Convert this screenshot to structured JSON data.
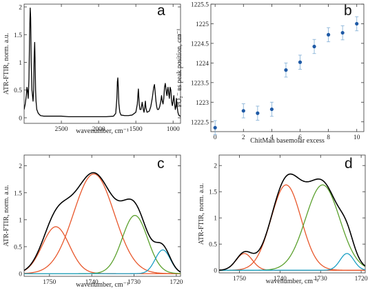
{
  "chart_data": [
    {
      "panel": "a",
      "type": "line",
      "xlabel": "wavenumber, cm⁻¹",
      "ylabel": "ATR-FTIR, norm. a.u.",
      "xlim": [
        3000,
        900
      ],
      "ylim": [
        -0.1,
        2.05
      ],
      "xticks": [
        2500,
        2000,
        1500,
        1000
      ],
      "yticks": [
        0,
        0.5,
        1,
        1.5,
        2
      ],
      "color": "#000000",
      "x": [
        3000,
        2985,
        2970,
        2962,
        2955,
        2945,
        2935,
        2925,
        2918,
        2912,
        2905,
        2895,
        2880,
        2872,
        2865,
        2858,
        2852,
        2846,
        2840,
        2830,
        2810,
        2780,
        2740,
        2700,
        2600,
        2500,
        2400,
        2300,
        2200,
        2100,
        2000,
        1900,
        1800,
        1770,
        1755,
        1748,
        1742,
        1736,
        1728,
        1715,
        1700,
        1650,
        1600,
        1550,
        1500,
        1480,
        1470,
        1466,
        1462,
        1455,
        1445,
        1430,
        1415,
        1400,
        1390,
        1380,
        1372,
        1365,
        1350,
        1320,
        1300,
        1280,
        1260,
        1250,
        1240,
        1230,
        1220,
        1210,
        1195,
        1180,
        1165,
        1155,
        1145,
        1135,
        1125,
        1115,
        1105,
        1098,
        1090,
        1082,
        1075,
        1068,
        1060,
        1050,
        1040,
        1030,
        1020,
        1010,
        1000,
        990,
        980,
        970,
        962,
        955,
        945,
        935,
        925,
        915,
        905,
        900
      ],
      "y": [
        0.15,
        0.25,
        0.4,
        0.55,
        0.5,
        0.35,
        0.7,
        1.6,
        1.98,
        1.8,
        1.0,
        0.5,
        0.3,
        0.5,
        1.1,
        1.36,
        1.0,
        0.5,
        0.3,
        0.15,
        0.08,
        0.04,
        0.03,
        0.03,
        0.03,
        0.03,
        0.02,
        0.02,
        0.02,
        0.02,
        0.02,
        0.02,
        0.03,
        0.08,
        0.35,
        0.65,
        0.72,
        0.55,
        0.25,
        0.1,
        0.05,
        0.04,
        0.04,
        0.05,
        0.1,
        0.25,
        0.45,
        0.52,
        0.42,
        0.25,
        0.15,
        0.15,
        0.28,
        0.15,
        0.1,
        0.2,
        0.3,
        0.18,
        0.1,
        0.12,
        0.2,
        0.35,
        0.55,
        0.6,
        0.45,
        0.3,
        0.2,
        0.15,
        0.15,
        0.2,
        0.3,
        0.4,
        0.3,
        0.25,
        0.35,
        0.55,
        0.62,
        0.55,
        0.45,
        0.4,
        0.5,
        0.55,
        0.45,
        0.35,
        0.55,
        0.5,
        0.3,
        0.22,
        0.3,
        0.4,
        0.25,
        0.15,
        0.2,
        0.35,
        0.2,
        0.1,
        0.05,
        0.04,
        0.03,
        0.03
      ]
    },
    {
      "panel": "b",
      "type": "scatter",
      "xlabel": "ChitMan basemolar excess",
      "ylabel": "PO₂⁻ as peak position, cm⁻¹",
      "xlim": [
        -0.3,
        10.5
      ],
      "ylim": [
        1222.25,
        1225.5
      ],
      "xticks": [
        0,
        2,
        4,
        6,
        8,
        10
      ],
      "yticks": [
        1222.5,
        1223,
        1223.5,
        1224,
        1224.5,
        1225,
        1225.5
      ],
      "color": "#1f5aa6",
      "x": [
        0,
        2,
        3,
        4,
        5,
        6,
        7,
        8,
        9,
        10
      ],
      "y": [
        1222.35,
        1222.78,
        1222.72,
        1222.82,
        1223.82,
        1224.02,
        1224.42,
        1224.72,
        1224.77,
        1225.0
      ],
      "yerr": [
        0.18,
        0.18,
        0.18,
        0.18,
        0.18,
        0.18,
        0.18,
        0.18,
        0.18,
        0.18
      ]
    },
    {
      "panel": "c",
      "type": "line",
      "xlabel": "wavenumber, cm⁻¹",
      "ylabel": "ATR-FTIR, norm. a.u.",
      "xlim": [
        1756,
        1719
      ],
      "ylim": [
        -0.05,
        2.2
      ],
      "xticks": [
        1750,
        1740,
        1730,
        1720
      ],
      "yticks": [
        0,
        0.5,
        1,
        1.5,
        2
      ],
      "series": [
        {
          "color": "#e8562a",
          "components": [
            {
              "center": 1748.5,
              "amp": 0.87,
              "sigma": 3.2
            }
          ]
        },
        {
          "color": "#e8562a",
          "components": [
            {
              "center": 1739.5,
              "amp": 1.85,
              "sigma": 4.8
            }
          ]
        },
        {
          "color": "#5aa02c",
          "components": [
            {
              "center": 1729.8,
              "amp": 1.08,
              "sigma": 3.0
            }
          ]
        },
        {
          "color": "#1a9fc4",
          "components": [
            {
              "center": 1723.2,
              "amp": 0.44,
              "sigma": 1.8
            }
          ]
        },
        {
          "color": "#000000",
          "components": [
            {
              "center": 1748.5,
              "amp": 0.87,
              "sigma": 3.2
            },
            {
              "center": 1739.5,
              "amp": 1.85,
              "sigma": 4.8
            },
            {
              "center": 1729.8,
              "amp": 1.08,
              "sigma": 3.0
            },
            {
              "center": 1723.2,
              "amp": 0.44,
              "sigma": 1.8
            }
          ]
        }
      ]
    },
    {
      "panel": "d",
      "type": "line",
      "xlabel": "wavenumber, cm⁻¹",
      "ylabel": "ATR-FTIR, norm. a.u.",
      "xlim": [
        1755,
        1719
      ],
      "ylim": [
        -0.05,
        2.2
      ],
      "xticks": [
        1750,
        1740,
        1730,
        1720
      ],
      "yticks": [
        0,
        0.5,
        1,
        1.5,
        2
      ],
      "series": [
        {
          "color": "#e8562a",
          "components": [
            {
              "center": 1748.8,
              "amp": 0.32,
              "sigma": 2.0
            }
          ]
        },
        {
          "color": "#e8562a",
          "components": [
            {
              "center": 1738.5,
              "amp": 1.63,
              "sigma": 3.7
            }
          ]
        },
        {
          "color": "#5aa02c",
          "components": [
            {
              "center": 1729.5,
              "amp": 1.63,
              "sigma": 4.2
            }
          ]
        },
        {
          "color": "#1a9fc4",
          "components": [
            {
              "center": 1723.5,
              "amp": 0.32,
              "sigma": 1.7
            }
          ]
        },
        {
          "color": "#000000",
          "components": [
            {
              "center": 1748.8,
              "amp": 0.32,
              "sigma": 2.0
            },
            {
              "center": 1738.5,
              "amp": 1.63,
              "sigma": 3.7
            },
            {
              "center": 1729.5,
              "amp": 1.63,
              "sigma": 4.2
            },
            {
              "center": 1723.5,
              "amp": 0.32,
              "sigma": 1.7
            }
          ]
        }
      ]
    }
  ]
}
